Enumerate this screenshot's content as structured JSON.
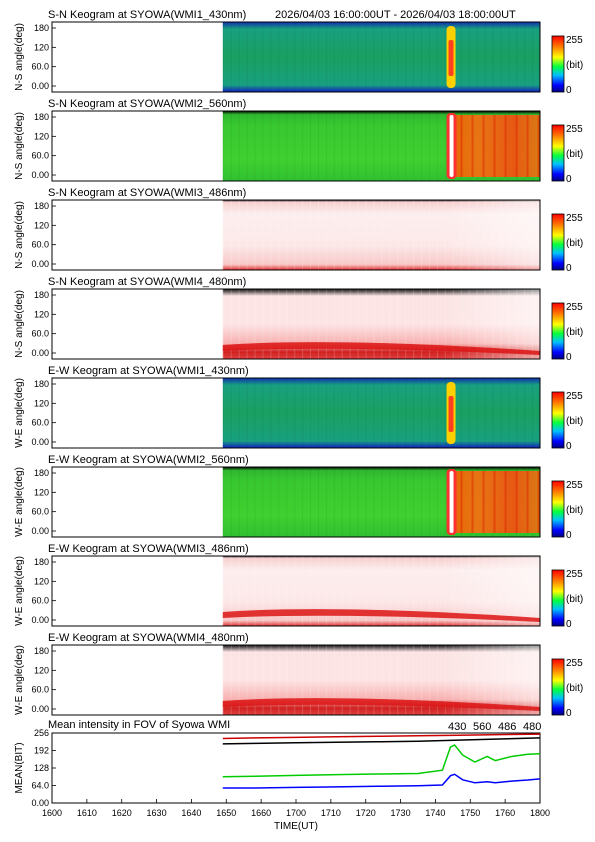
{
  "header": {
    "period": "2026/04/03 16:00:00UT - 2026/04/03 18:00:00UT"
  },
  "colorbar": {
    "max_label": "255",
    "unit_label": "(bit)",
    "min_label": "0"
  },
  "keogram_y_ticks": [
    "180",
    "120",
    "60.0",
    "0.00"
  ],
  "chart_data": [
    {
      "type": "heatmap",
      "title": "S-N Keogram at SYOWA(WMI1_430nm)",
      "ylabel": "N-S angle(deg)",
      "ylim": [
        0,
        180
      ],
      "xlim": [
        "16:00",
        "18:00"
      ],
      "data_start": "16:42",
      "palette": "blue_green",
      "event_time": "17:38"
    },
    {
      "type": "heatmap",
      "title": "S-N Keogram at SYOWA(WMI2_560nm)",
      "ylabel": "N-S angle(deg)",
      "ylim": [
        0,
        180
      ],
      "xlim": [
        "16:00",
        "18:00"
      ],
      "data_start": "16:42",
      "palette": "green_red",
      "event_time": "17:38"
    },
    {
      "type": "heatmap",
      "title": "S-N Keogram at SYOWA(WMI3_486nm)",
      "ylabel": "N-S angle(deg)",
      "ylim": [
        0,
        180
      ],
      "xlim": [
        "16:00",
        "18:00"
      ],
      "data_start": "16:42",
      "palette": "saturated_white_red"
    },
    {
      "type": "heatmap",
      "title": "S-N Keogram at SYOWA(WMI4_480nm)",
      "ylabel": "N-S angle(deg)",
      "ylim": [
        0,
        180
      ],
      "xlim": [
        "16:00",
        "18:00"
      ],
      "data_start": "16:42",
      "palette": "saturated_white_red"
    },
    {
      "type": "heatmap",
      "title": "E-W Keogram at SYOWA(WMI1_430nm)",
      "ylabel": "W-E angle(deg)",
      "ylim": [
        0,
        180
      ],
      "xlim": [
        "16:00",
        "18:00"
      ],
      "data_start": "16:42",
      "palette": "blue_green",
      "event_time": "17:38"
    },
    {
      "type": "heatmap",
      "title": "E-W Keogram at SYOWA(WMI2_560nm)",
      "ylabel": "W-E angle(deg)",
      "ylim": [
        0,
        180
      ],
      "xlim": [
        "16:00",
        "18:00"
      ],
      "data_start": "16:42",
      "palette": "green_red",
      "event_time": "17:38"
    },
    {
      "type": "heatmap",
      "title": "E-W Keogram at SYOWA(WMI3_486nm)",
      "ylabel": "W-E angle(deg)",
      "ylim": [
        0,
        180
      ],
      "xlim": [
        "16:00",
        "18:00"
      ],
      "data_start": "16:42",
      "palette": "saturated_white_red"
    },
    {
      "type": "heatmap",
      "title": "E-W Keogram at SYOWA(WMI4_480nm)",
      "ylabel": "W-E angle(deg)",
      "ylim": [
        0,
        180
      ],
      "xlim": [
        "16:00",
        "18:00"
      ],
      "data_start": "16:42",
      "palette": "saturated_white_red"
    },
    {
      "type": "line",
      "title": "Mean intensity in FOV of Syowa WMI",
      "xlabel": "TIME(UT)",
      "ylabel": "MEAN(BIT)",
      "ylim": [
        0,
        256
      ],
      "y_ticks": [
        "256",
        "192",
        "128",
        "64.0",
        "0.00"
      ],
      "x_ticks": [
        "1600",
        "1610",
        "1620",
        "1630",
        "1640",
        "1650",
        "1660",
        "1700",
        "1710",
        "1720",
        "1730",
        "1740",
        "1750",
        "1760",
        "1800"
      ],
      "legend_position": "top-right",
      "series": [
        {
          "name": "430",
          "color": "#0000ff",
          "x": [
            "16:42",
            "16:50",
            "17:00",
            "17:10",
            "17:20",
            "17:30",
            "17:36",
            "17:38",
            "17:39",
            "17:41",
            "17:44",
            "17:47",
            "17:49",
            "17:53",
            "17:57",
            "18:00"
          ],
          "y": [
            55,
            55,
            57,
            59,
            61,
            63,
            66,
            100,
            105,
            85,
            74,
            78,
            74,
            80,
            84,
            88
          ]
        },
        {
          "name": "560",
          "color": "#00cc00",
          "x": [
            "16:42",
            "16:50",
            "17:00",
            "17:10",
            "17:20",
            "17:30",
            "17:36",
            "17:38",
            "17:39",
            "17:41",
            "17:44",
            "17:47",
            "17:49",
            "17:53",
            "17:57",
            "18:00"
          ],
          "y": [
            96,
            98,
            101,
            104,
            106,
            108,
            120,
            205,
            212,
            175,
            150,
            170,
            155,
            170,
            178,
            180
          ]
        },
        {
          "name": "486",
          "color": "#cc0000",
          "x": [
            "16:42",
            "16:50",
            "17:00",
            "17:10",
            "17:20",
            "17:30",
            "17:40",
            "17:50",
            "18:00"
          ],
          "y": [
            236,
            238,
            240,
            242,
            244,
            246,
            248,
            250,
            252
          ]
        },
        {
          "name": "480",
          "color": "#000000",
          "x": [
            "16:42",
            "16:50",
            "17:00",
            "17:10",
            "17:20",
            "17:30",
            "17:40",
            "17:50",
            "18:00"
          ],
          "y": [
            216,
            218,
            220,
            222,
            224,
            226,
            230,
            234,
            238
          ]
        }
      ]
    }
  ]
}
